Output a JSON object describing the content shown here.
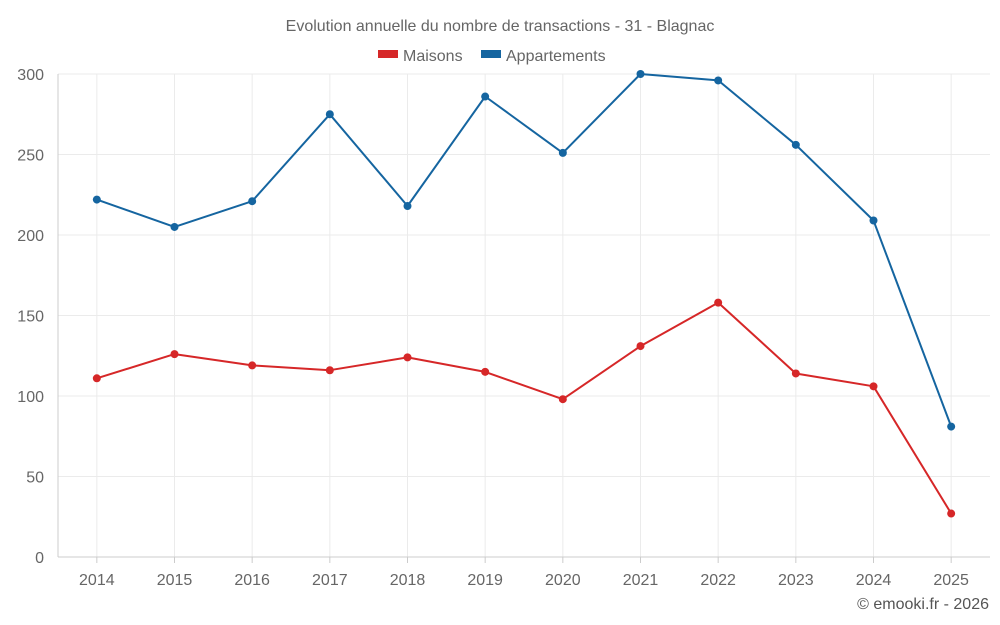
{
  "chart_data": {
    "type": "line",
    "title": "Evolution annuelle du nombre de transactions - 31 - Blagnac",
    "xlabel": "",
    "ylabel": "",
    "categories": [
      "2014",
      "2015",
      "2016",
      "2017",
      "2018",
      "2019",
      "2020",
      "2021",
      "2022",
      "2023",
      "2024",
      "2025"
    ],
    "ylim": [
      0,
      300
    ],
    "yticks": [
      0,
      50,
      100,
      150,
      200,
      250,
      300
    ],
    "grid": true,
    "legend_position": "top-center",
    "series": [
      {
        "name": "Maisons",
        "color": "#d62728",
        "values": [
          111,
          126,
          119,
          116,
          124,
          115,
          98,
          131,
          158,
          114,
          106,
          27
        ]
      },
      {
        "name": "Appartements",
        "color": "#1565a0",
        "values": [
          222,
          205,
          221,
          275,
          218,
          286,
          251,
          300,
          296,
          256,
          209,
          81
        ]
      }
    ]
  },
  "credit": "© emooki.fr - 2026"
}
